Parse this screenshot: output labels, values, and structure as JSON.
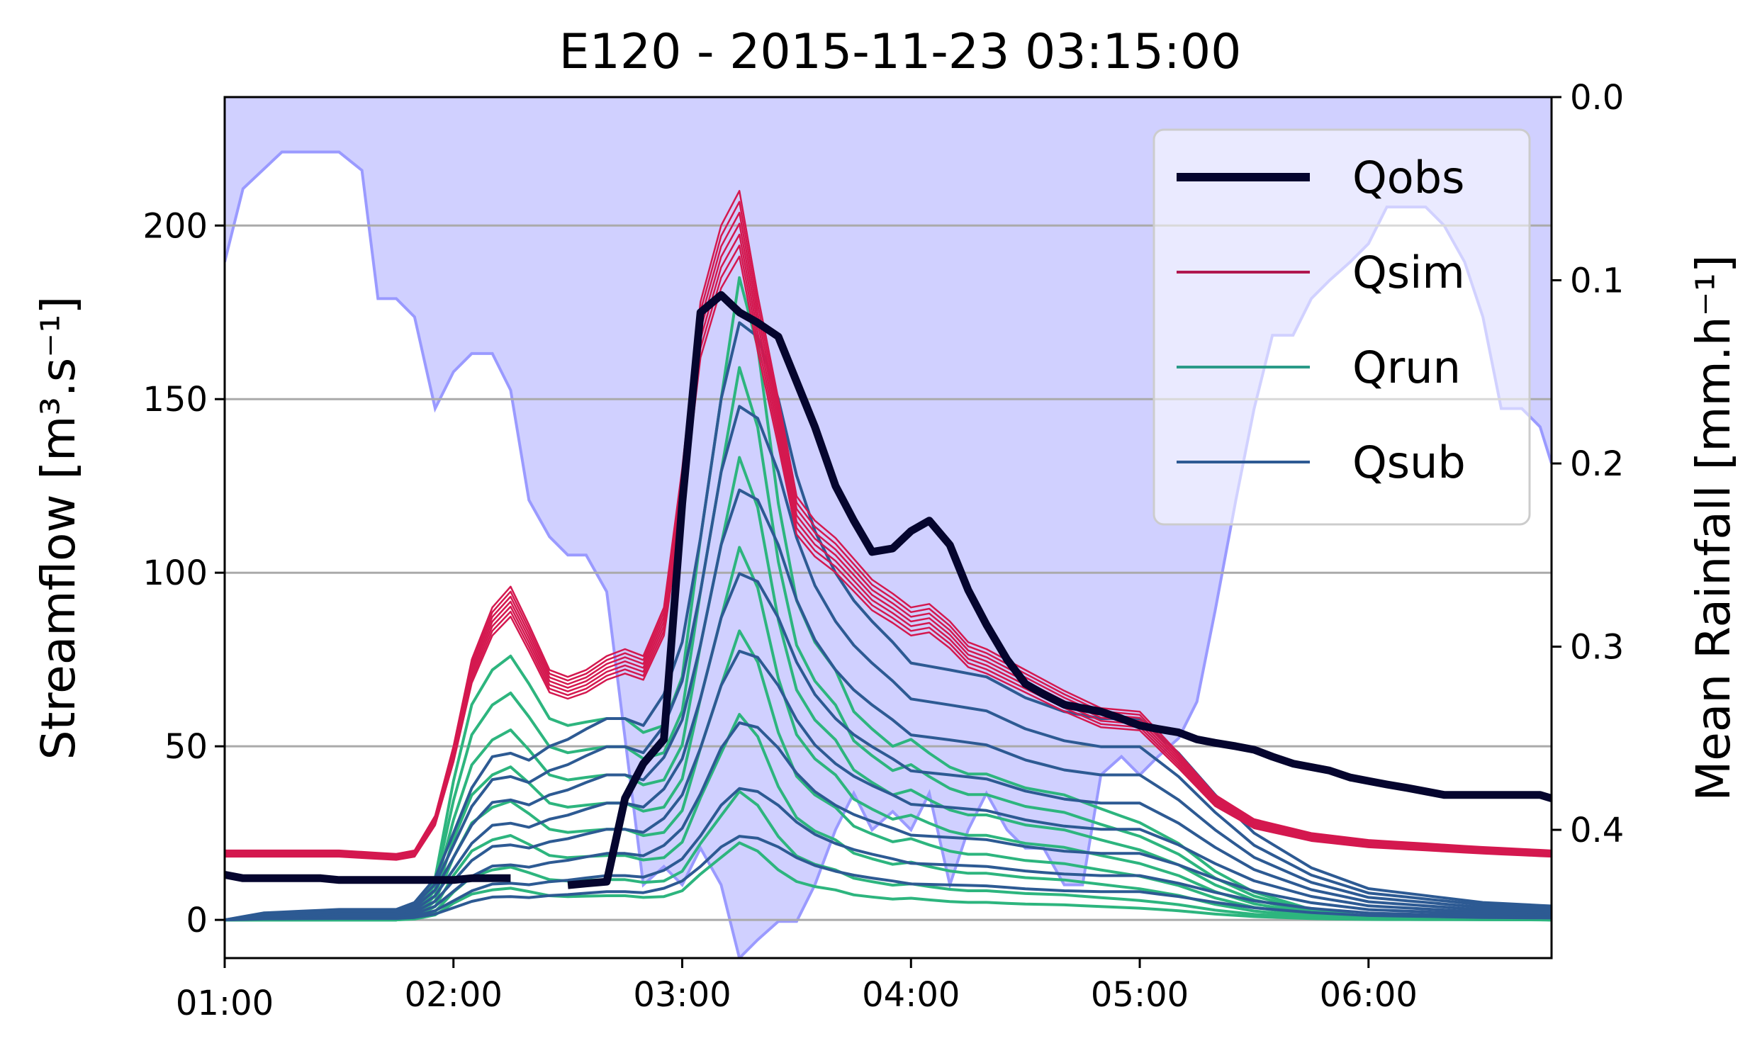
{
  "chart_data": {
    "type": "line",
    "title": "E120 - 2015-11-23 03:15:00",
    "ylabel": "Streamflow [m³.s⁻¹]",
    "y2label": "Mean Rainfall [mm.h⁻¹]",
    "xlim_hours": [
      1.0,
      6.8
    ],
    "ylim": [
      -11,
      237
    ],
    "y2lim": [
      0.0,
      0.47
    ],
    "y2_inverted": true,
    "grid": "horizontal",
    "legend_position": "top-right",
    "x_ticks": [
      {
        "value": 1,
        "label": "01:00"
      },
      {
        "value": 2,
        "label": "02:00"
      },
      {
        "value": 3,
        "label": "03:00"
      },
      {
        "value": 4,
        "label": "04:00"
      },
      {
        "value": 5,
        "label": "05:00"
      },
      {
        "value": 6,
        "label": "06:00"
      }
    ],
    "y_ticks": [
      0,
      50,
      100,
      150,
      200
    ],
    "y2_ticks": [
      {
        "value": 0.0,
        "label": "0.0"
      },
      {
        "value": 0.1,
        "label": "0.1"
      },
      {
        "value": 0.2,
        "label": "0.2"
      },
      {
        "value": 0.3,
        "label": "0.3"
      },
      {
        "value": 0.4,
        "label": "0.4"
      }
    ],
    "legend": [
      {
        "label": "Qobs",
        "color": "#05052e"
      },
      {
        "label": "Qsim",
        "color": "#b0174f"
      },
      {
        "label": "Qrun",
        "color": "#2a9a88"
      },
      {
        "label": "Qsub",
        "color": "#2d5a93"
      }
    ],
    "rainfall": {
      "name": "Mean Rainfall",
      "color": "#8888ff",
      "x": [
        1.0,
        1.08,
        1.25,
        1.5,
        1.6,
        1.67,
        1.75,
        1.83,
        1.92,
        2.0,
        2.08,
        2.17,
        2.25,
        2.33,
        2.42,
        2.5,
        2.58,
        2.67,
        2.75,
        2.83,
        2.92,
        3.0,
        3.08,
        3.17,
        3.25,
        3.33,
        3.42,
        3.5,
        3.58,
        3.67,
        3.75,
        3.83,
        3.92,
        4.0,
        4.08,
        4.17,
        4.25,
        4.33,
        4.42,
        4.5,
        4.58,
        4.67,
        4.75,
        4.83,
        4.92,
        5.0,
        5.08,
        5.17,
        5.25,
        5.33,
        5.42,
        5.5,
        5.58,
        5.67,
        5.75,
        5.83,
        5.92,
        6.0,
        6.08,
        6.17,
        6.25,
        6.33,
        6.42,
        6.5,
        6.58,
        6.67,
        6.75,
        6.8
      ],
      "y": [
        0.09,
        0.05,
        0.03,
        0.03,
        0.04,
        0.11,
        0.11,
        0.12,
        0.17,
        0.15,
        0.14,
        0.14,
        0.16,
        0.22,
        0.24,
        0.25,
        0.25,
        0.27,
        0.35,
        0.43,
        0.42,
        0.43,
        0.41,
        0.43,
        0.47,
        0.46,
        0.45,
        0.45,
        0.43,
        0.4,
        0.38,
        0.4,
        0.39,
        0.4,
        0.38,
        0.43,
        0.4,
        0.38,
        0.4,
        0.41,
        0.41,
        0.43,
        0.43,
        0.37,
        0.36,
        0.37,
        0.36,
        0.35,
        0.33,
        0.28,
        0.22,
        0.17,
        0.13,
        0.13,
        0.11,
        0.1,
        0.09,
        0.08,
        0.06,
        0.06,
        0.06,
        0.07,
        0.09,
        0.12,
        0.17,
        0.17,
        0.18,
        0.2
      ]
    },
    "x": [
      1.0,
      1.08,
      1.17,
      1.25,
      1.33,
      1.42,
      1.5,
      1.58,
      1.67,
      1.75,
      1.83,
      1.92,
      2.0,
      2.08,
      2.17,
      2.25,
      2.33,
      2.42,
      2.5,
      2.58,
      2.67,
      2.75,
      2.83,
      2.92,
      3.0,
      3.08,
      3.17,
      3.25,
      3.33,
      3.42,
      3.5,
      3.58,
      3.67,
      3.75,
      3.83,
      3.92,
      4.0,
      4.08,
      4.17,
      4.25,
      4.33,
      4.42,
      4.5,
      4.58,
      4.67,
      4.75,
      4.83,
      4.92,
      5.0,
      5.08,
      5.17,
      5.25,
      5.33,
      5.42,
      5.5,
      5.58,
      5.67,
      5.75,
      5.83,
      5.92,
      6.0,
      6.08,
      6.17,
      6.25,
      6.33,
      6.42,
      6.5,
      6.58,
      6.67,
      6.75,
      6.8
    ],
    "series": [
      {
        "name": "Qobs",
        "color": "#05052e",
        "values": [
          13,
          12,
          12,
          12,
          12,
          12,
          11.5,
          11.5,
          11.5,
          11.5,
          11.5,
          11.5,
          11.5,
          12,
          12,
          12,
          null,
          null,
          10,
          10.5,
          11,
          35,
          45,
          52,
          120,
          175,
          180,
          175,
          172,
          168,
          155,
          142,
          125,
          115,
          106,
          107,
          112,
          115,
          108,
          95,
          85,
          75,
          68,
          65,
          62,
          61,
          60,
          58,
          56,
          55,
          54,
          52,
          51,
          50,
          49,
          47,
          45,
          44,
          43,
          41,
          40,
          39,
          38,
          37,
          36,
          36,
          36,
          36,
          36,
          36,
          35
        ]
      }
    ]
  }
}
